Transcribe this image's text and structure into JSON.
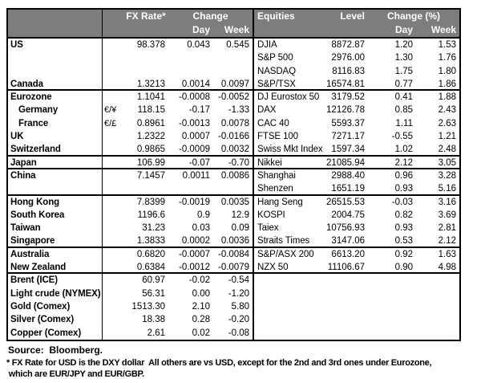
{
  "fx": {
    "header": {
      "rate": "FX Rate*",
      "change": "Change",
      "day": "Day",
      "week": "Week"
    }
  },
  "eq": {
    "header": {
      "name": "Equities",
      "level": "Level",
      "change": "Change (%)",
      "day": "Day",
      "week": "Week"
    }
  },
  "rows": [
    {
      "region": "US",
      "pair": "",
      "rate": "98.378",
      "day": "0.043",
      "week": "0.545",
      "indent": false,
      "eq": "DJIA",
      "level": "8872.87",
      "eq_day": "1.20",
      "eq_week": "1.53",
      "group_end": false
    },
    {
      "region": "",
      "pair": "",
      "rate": "",
      "day": "",
      "week": "",
      "indent": false,
      "eq": "S&P 500",
      "level": "2976.00",
      "eq_day": "1.30",
      "eq_week": "1.76",
      "group_end": false
    },
    {
      "region": "",
      "pair": "",
      "rate": "",
      "day": "",
      "week": "",
      "indent": false,
      "eq": "NASDAQ",
      "level": "8116.83",
      "eq_day": "1.75",
      "eq_week": "1.80",
      "group_end": false
    },
    {
      "region": "Canada",
      "pair": "",
      "rate": "1.3213",
      "day": "0.0014",
      "week": "0.0097",
      "indent": false,
      "eq": "S&P/TSX",
      "level": "16574.81",
      "eq_day": "0.77",
      "eq_week": "1.86",
      "group_end": true
    },
    {
      "region": "Eurozone",
      "pair": "",
      "rate": "1.1041",
      "day": "-0.0008",
      "week": "-0.0052",
      "indent": false,
      "eq": "DJ Eurostox 50",
      "level": "3179.52",
      "eq_day": "0.41",
      "eq_week": "1.88",
      "group_end": false
    },
    {
      "region": "Germany",
      "pair": "€/¥",
      "rate": "118.15",
      "day": "-0.17",
      "week": "-1.33",
      "indent": true,
      "eq": "DAX",
      "level": "12126.78",
      "eq_day": "0.85",
      "eq_week": "2.43",
      "group_end": false
    },
    {
      "region": "France",
      "pair": "€/£",
      "rate": "0.8961",
      "day": "-0.0013",
      "week": "0.0078",
      "indent": true,
      "eq": "CAC 40",
      "level": "5593.37",
      "eq_day": "1.11",
      "eq_week": "2.63",
      "group_end": false
    },
    {
      "region": "UK",
      "pair": "",
      "rate": "1.2322",
      "day": "0.0007",
      "week": "-0.0166",
      "indent": false,
      "eq": "FTSE 100",
      "level": "7271.17",
      "eq_day": "-0.55",
      "eq_week": "1.21",
      "group_end": false
    },
    {
      "region": "Switzerland",
      "pair": "",
      "rate": "0.9865",
      "day": "-0.0009",
      "week": "0.0032",
      "indent": false,
      "eq": "Swiss Mkt Index",
      "level": "1597.34",
      "eq_day": "1.02",
      "eq_week": "2.48",
      "group_end": true
    },
    {
      "region": "Japan",
      "pair": "",
      "rate": "106.99",
      "day": "-0.07",
      "week": "-0.70",
      "indent": false,
      "eq": "Nikkei",
      "level": "21085.94",
      "eq_day": "2.12",
      "eq_week": "3.05",
      "group_end": true
    },
    {
      "region": "China",
      "pair": "",
      "rate": "7.1457",
      "day": "0.0011",
      "week": "0.0086",
      "indent": false,
      "eq": "Shanghai",
      "level": "2988.40",
      "eq_day": "0.96",
      "eq_week": "3.28",
      "group_end": false
    },
    {
      "region": "",
      "pair": "",
      "rate": "",
      "day": "",
      "week": "",
      "indent": false,
      "eq": "Shenzen",
      "level": "1651.19",
      "eq_day": "0.93",
      "eq_week": "5.16",
      "group_end": true
    },
    {
      "region": "Hong Kong",
      "pair": "",
      "rate": "7.8399",
      "day": "-0.0019",
      "week": "0.0035",
      "indent": false,
      "eq": "Hang Seng",
      "level": "26515.53",
      "eq_day": "-0.03",
      "eq_week": "3.16",
      "group_end": false
    },
    {
      "region": "South Korea",
      "pair": "",
      "rate": "1196.6",
      "day": "0.9",
      "week": "12.9",
      "indent": false,
      "eq": "KOSPI",
      "level": "2004.75",
      "eq_day": "0.82",
      "eq_week": "3.69",
      "group_end": false
    },
    {
      "region": "Taiwan",
      "pair": "",
      "rate": "31.23",
      "day": "0.03",
      "week": "0.09",
      "indent": false,
      "eq": "Taiex",
      "level": "10756.93",
      "eq_day": "0.93",
      "eq_week": "2.81",
      "group_end": false
    },
    {
      "region": "Singapore",
      "pair": "",
      "rate": "1.3833",
      "day": "0.0002",
      "week": "0.0036",
      "indent": false,
      "eq": "Straits Times",
      "level": "3147.06",
      "eq_day": "0.53",
      "eq_week": "2.12",
      "group_end": true
    },
    {
      "region": "Australia",
      "pair": "",
      "rate": "0.6820",
      "day": "-0.0007",
      "week": "-0.0084",
      "indent": false,
      "eq": "S&P/ASX 200",
      "level": "6613.20",
      "eq_day": "0.92",
      "eq_week": "1.63",
      "group_end": false
    },
    {
      "region": "New Zealand",
      "pair": "",
      "rate": "0.6384",
      "day": "-0.0012",
      "week": "-0.0079",
      "indent": false,
      "eq": "NZX 50",
      "level": "11106.67",
      "eq_day": "0.90",
      "eq_week": "4.98",
      "group_end": true
    },
    {
      "region": "Brent (ICE)",
      "pair": "",
      "rate": "60.97",
      "day": "-0.02",
      "week": "-0.54",
      "indent": false,
      "eq": "",
      "level": "",
      "eq_day": "",
      "eq_week": "",
      "group_end": false
    },
    {
      "region": "Light crude (NYMEX)",
      "pair": "",
      "rate": "56.31",
      "day": "0.00",
      "week": "-1.20",
      "indent": false,
      "eq": "",
      "level": "",
      "eq_day": "",
      "eq_week": "",
      "group_end": false
    },
    {
      "region": "Gold (Comex)",
      "pair": "",
      "rate": "1513.30",
      "day": "2.10",
      "week": "5.80",
      "indent": false,
      "eq": "",
      "level": "",
      "eq_day": "",
      "eq_week": "",
      "group_end": false
    },
    {
      "region": "Silver (Comex)",
      "pair": "",
      "rate": "18.38",
      "day": "0.28",
      "week": "-0.20",
      "indent": false,
      "eq": "",
      "level": "",
      "eq_day": "",
      "eq_week": "",
      "group_end": false
    },
    {
      "region": "Copper (Comex)",
      "pair": "",
      "rate": "2.61",
      "day": "0.02",
      "week": "-0.08",
      "indent": false,
      "eq": "",
      "level": "",
      "eq_day": "",
      "eq_week": "",
      "group_end": false
    }
  ],
  "footer": {
    "source": "Source:  Bloomberg.",
    "note1": "* FX Rate for USD is the DXY dollar  All others are vs USD, except for the 2nd and 3rd ones under Eurozone,",
    "note2": " which are EUR/JPY and EUR/GBP."
  },
  "colors": {
    "header_bg": "#7d7d7d",
    "header_text": "#ffffff",
    "border": "#000000",
    "text": "#000000"
  }
}
